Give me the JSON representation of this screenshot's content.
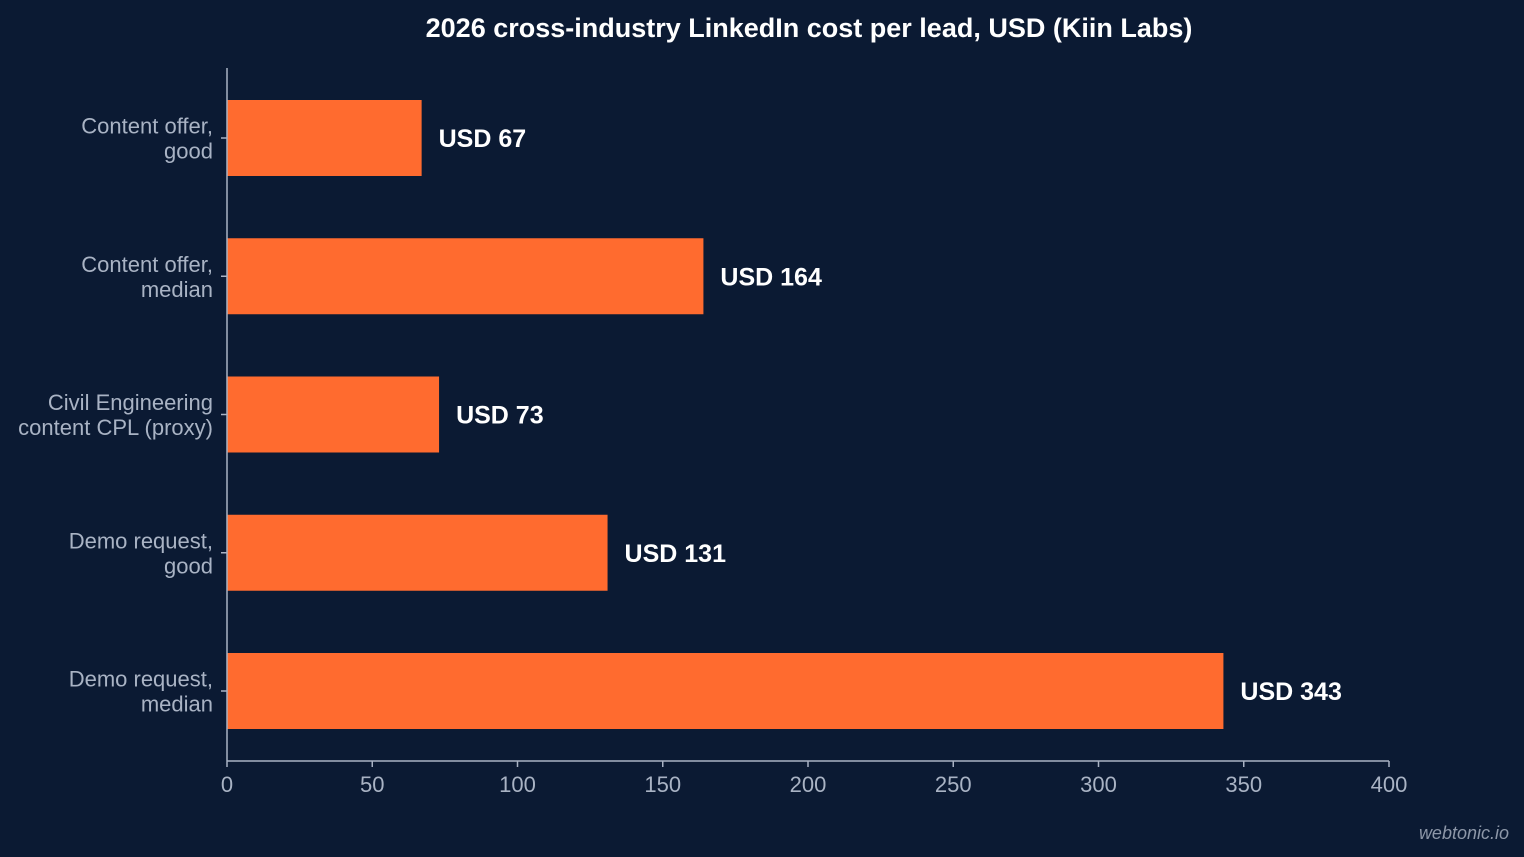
{
  "chart_data": {
    "type": "bar",
    "orientation": "horizontal",
    "title": "2026 cross-industry LinkedIn cost per lead, USD (Kiin Labs)",
    "xlabel": "",
    "ylabel": "",
    "xlim": [
      0,
      400
    ],
    "x_ticks": [
      0,
      50,
      100,
      150,
      200,
      250,
      300,
      350,
      400
    ],
    "categories": [
      [
        "Content offer,",
        "good"
      ],
      [
        "Content offer,",
        "median"
      ],
      [
        "Civil Engineering",
        "content CPL (proxy)"
      ],
      [
        "Demo request,",
        "good"
      ],
      [
        "Demo request,",
        "median"
      ]
    ],
    "values": [
      67,
      164,
      73,
      131,
      343
    ],
    "data_labels": [
      "USD 67",
      "USD 164",
      "USD 73",
      "USD 131",
      "USD 343"
    ],
    "grid": false,
    "legend": "none",
    "bar_color": "#ff6b2f"
  },
  "watermark": "webtonic.io",
  "colors": {
    "background": "#0b1a33",
    "axis": "#a9b3c4",
    "text": "#ffffff"
  }
}
